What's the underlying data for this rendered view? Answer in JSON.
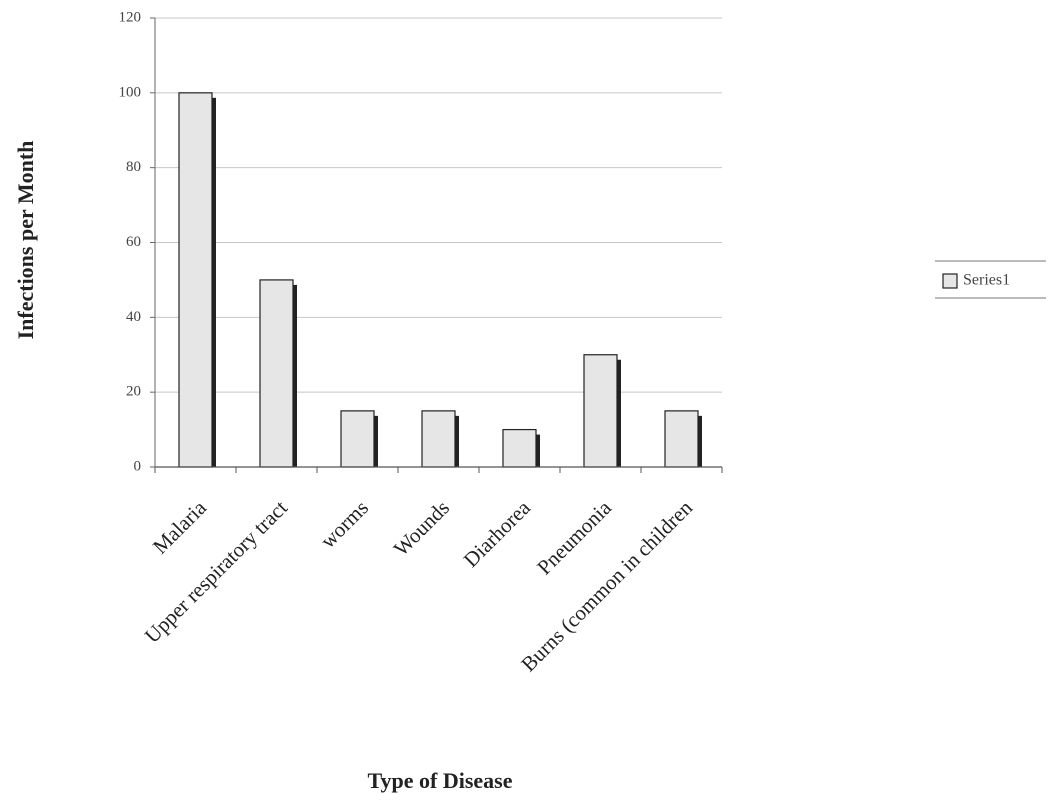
{
  "chart_data": {
    "type": "bar",
    "categories": [
      "Malaria",
      "Upper respiratory tract",
      "worms",
      "Wounds",
      "Diarhorea",
      "Pneumonia",
      "Burns (common in children"
    ],
    "series": [
      {
        "name": "Series1",
        "color": "#e6e6e6",
        "values": [
          100,
          50,
          15,
          15,
          10,
          30,
          15
        ]
      }
    ],
    "x_label": "Type of Disease",
    "y_label": "Infections per Month",
    "ylim": [
      0,
      120
    ],
    "yticks": [
      0,
      20,
      40,
      60,
      80,
      100,
      120
    ],
    "grid": true,
    "legend": "right"
  }
}
